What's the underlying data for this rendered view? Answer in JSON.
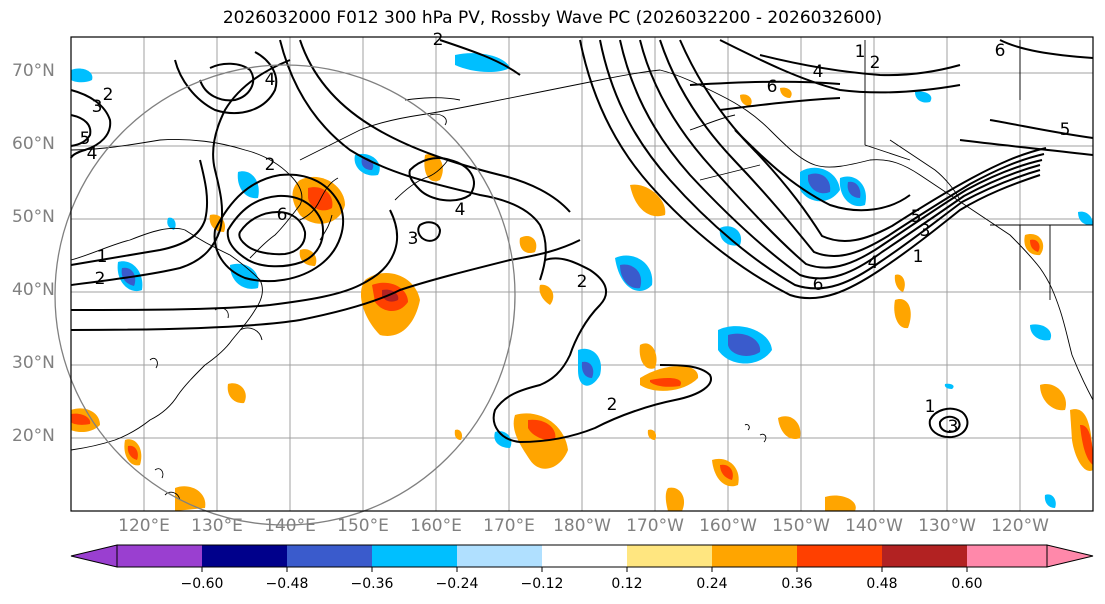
{
  "title": "2026032000 F012 300 hPa PV, Rossby Wave PC (2026032200 - 2026032600)",
  "map": {
    "lat_labels": [
      "70°N",
      "60°N",
      "50°N",
      "40°N",
      "30°N",
      "20°N"
    ],
    "lat_values": [
      70,
      60,
      50,
      40,
      30,
      20
    ],
    "lon_labels": [
      "120°E",
      "130°E",
      "140°E",
      "150°E",
      "160°E",
      "170°E",
      "180°W",
      "170°W",
      "160°W",
      "150°W",
      "140°W",
      "130°W",
      "120°W"
    ],
    "lon_values": [
      120,
      130,
      140,
      150,
      160,
      170,
      180,
      190,
      200,
      210,
      220,
      230,
      240
    ],
    "extent": {
      "lon_min": 110,
      "lon_max": 250,
      "lat_min": 10,
      "lat_max": 75
    },
    "contour_labels": [
      "1",
      "2",
      "3",
      "4",
      "5",
      "6"
    ],
    "colors": {
      "land": "#000000",
      "grid": "#a0a0a0",
      "circle": "#808080"
    }
  },
  "colorbar": {
    "tick_labels": [
      "−0.60",
      "−0.48",
      "−0.36",
      "−0.24",
      "−0.12",
      "0.12",
      "0.24",
      "0.36",
      "0.48",
      "0.60"
    ],
    "colors": [
      "#9a3fd0",
      "#00008b",
      "#3a5bcc",
      "#00bfff",
      "#b0e0ff",
      "#ffffff",
      "#ffe680",
      "#ffa500",
      "#ff4000",
      "#b22222",
      "#ff88aa"
    ]
  }
}
